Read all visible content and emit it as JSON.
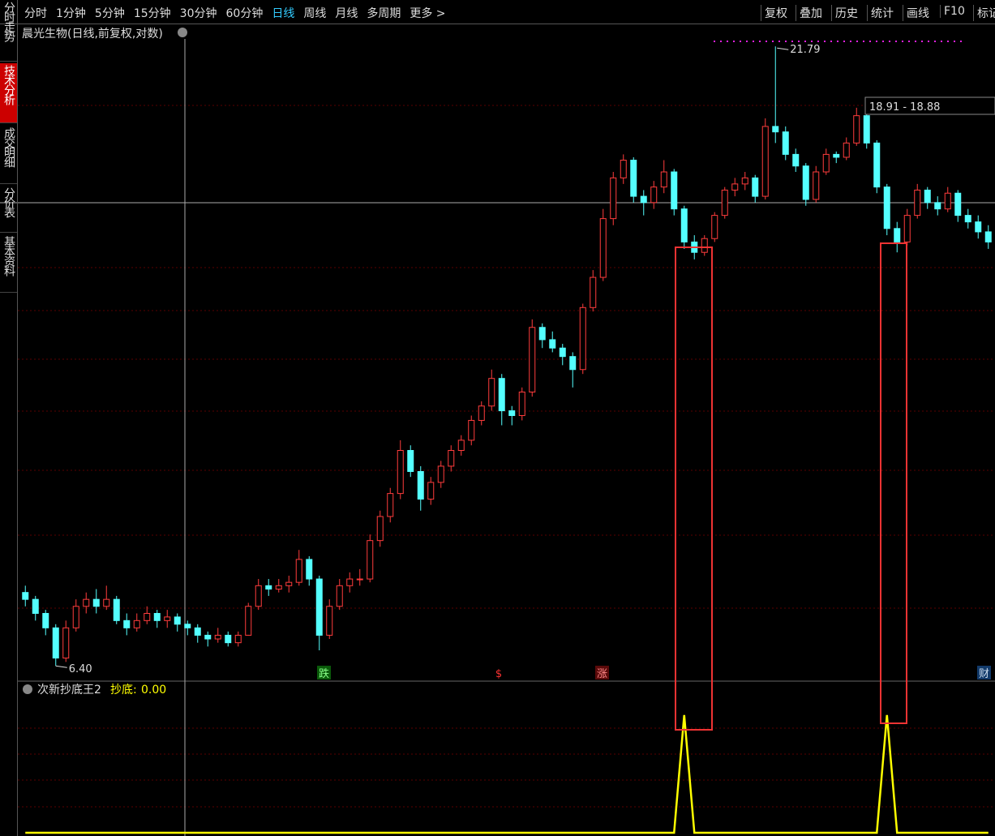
{
  "toolbar": {
    "periods": [
      "分时",
      "1分钟",
      "5分钟",
      "15分钟",
      "30分钟",
      "60分钟",
      "日线",
      "周线",
      "月线",
      "多周期",
      "更多 >"
    ],
    "tools": [
      "复权",
      "叠加",
      "历史",
      "统计",
      "画线",
      "F10",
      "标记"
    ]
  },
  "side_tabs": [
    "分时走势",
    "技术分析",
    "成交明细",
    "分价表",
    "基本资料"
  ],
  "chart_data": [
    {
      "type": "candlestick",
      "title": "晨光生物(日线,前复权,对数)",
      "log_scale": true,
      "ylim": [
        6.23,
        22.4
      ],
      "up_color": "#ff3c3c",
      "down_color": "#54ffff",
      "candles": [
        [
          7.4,
          7.5,
          7.2,
          7.3
        ],
        [
          7.3,
          7.35,
          7.0,
          7.1
        ],
        [
          7.1,
          7.15,
          6.8,
          6.9
        ],
        [
          6.9,
          6.95,
          6.4,
          6.5
        ],
        [
          6.5,
          7.0,
          6.45,
          6.9
        ],
        [
          6.9,
          7.3,
          6.85,
          7.2
        ],
        [
          7.2,
          7.4,
          7.1,
          7.3
        ],
        [
          7.3,
          7.45,
          7.1,
          7.2
        ],
        [
          7.2,
          7.5,
          7.15,
          7.3
        ],
        [
          7.3,
          7.35,
          6.95,
          7.0
        ],
        [
          7.0,
          7.1,
          6.8,
          6.9
        ],
        [
          6.9,
          7.1,
          6.85,
          7.0
        ],
        [
          7.0,
          7.2,
          6.95,
          7.1
        ],
        [
          7.1,
          7.15,
          6.9,
          7.0
        ],
        [
          7.0,
          7.15,
          6.9,
          7.05
        ],
        [
          7.05,
          7.1,
          6.85,
          6.95
        ],
        [
          6.95,
          7.0,
          6.8,
          6.9
        ],
        [
          6.9,
          6.95,
          6.7,
          6.8
        ],
        [
          6.8,
          6.85,
          6.65,
          6.75
        ],
        [
          6.75,
          6.9,
          6.7,
          6.8
        ],
        [
          6.8,
          6.85,
          6.65,
          6.7
        ],
        [
          6.7,
          6.85,
          6.65,
          6.8
        ],
        [
          6.8,
          7.25,
          6.8,
          7.2
        ],
        [
          7.2,
          7.6,
          7.15,
          7.5
        ],
        [
          7.5,
          7.6,
          7.35,
          7.45
        ],
        [
          7.45,
          7.6,
          7.4,
          7.5
        ],
        [
          7.5,
          7.65,
          7.4,
          7.55
        ],
        [
          7.55,
          8.05,
          7.5,
          7.9
        ],
        [
          7.9,
          7.95,
          7.5,
          7.6
        ],
        [
          7.6,
          7.65,
          6.6,
          6.8
        ],
        [
          6.8,
          7.3,
          6.75,
          7.2
        ],
        [
          7.2,
          7.6,
          7.15,
          7.5
        ],
        [
          7.5,
          7.7,
          7.4,
          7.6
        ],
        [
          7.6,
          7.75,
          7.5,
          7.6
        ],
        [
          7.6,
          8.3,
          7.55,
          8.2
        ],
        [
          8.2,
          8.7,
          8.1,
          8.6
        ],
        [
          8.6,
          9.1,
          8.5,
          9.0
        ],
        [
          9.0,
          10.0,
          8.9,
          9.8
        ],
        [
          9.8,
          9.9,
          9.3,
          9.4
        ],
        [
          9.4,
          9.5,
          8.7,
          8.9
        ],
        [
          8.9,
          9.3,
          8.8,
          9.2
        ],
        [
          9.2,
          9.6,
          9.1,
          9.5
        ],
        [
          9.5,
          9.9,
          9.4,
          9.8
        ],
        [
          9.8,
          10.1,
          9.7,
          10.0
        ],
        [
          10.0,
          10.5,
          9.9,
          10.4
        ],
        [
          10.4,
          10.8,
          10.3,
          10.7
        ],
        [
          10.7,
          11.5,
          10.6,
          11.3
        ],
        [
          11.3,
          11.4,
          10.3,
          10.6
        ],
        [
          10.6,
          10.7,
          10.3,
          10.5
        ],
        [
          10.5,
          11.1,
          10.4,
          11.0
        ],
        [
          11.0,
          12.7,
          10.9,
          12.5
        ],
        [
          12.5,
          12.6,
          12.0,
          12.2
        ],
        [
          12.2,
          12.4,
          11.9,
          12.0
        ],
        [
          12.0,
          12.1,
          11.6,
          11.8
        ],
        [
          11.8,
          11.9,
          11.1,
          11.5
        ],
        [
          11.5,
          13.1,
          11.4,
          13.0
        ],
        [
          13.0,
          14.0,
          12.9,
          13.8
        ],
        [
          13.8,
          15.8,
          13.7,
          15.5
        ],
        [
          15.5,
          17.0,
          15.3,
          16.8
        ],
        [
          16.8,
          17.6,
          16.6,
          17.4
        ],
        [
          17.4,
          17.5,
          16.0,
          16.2
        ],
        [
          16.2,
          16.4,
          15.6,
          16.0
        ],
        [
          16.0,
          16.7,
          15.8,
          16.5
        ],
        [
          16.5,
          17.4,
          16.3,
          17.0
        ],
        [
          17.0,
          17.1,
          15.6,
          15.8
        ],
        [
          15.8,
          15.9,
          14.6,
          14.8
        ],
        [
          14.8,
          15.0,
          14.3,
          14.5
        ],
        [
          14.5,
          15.0,
          14.4,
          14.9
        ],
        [
          14.9,
          15.7,
          14.8,
          15.6
        ],
        [
          15.6,
          16.5,
          15.5,
          16.4
        ],
        [
          16.4,
          16.8,
          16.2,
          16.6
        ],
        [
          16.6,
          17.0,
          16.4,
          16.8
        ],
        [
          16.8,
          16.9,
          16.0,
          16.2
        ],
        [
          16.2,
          18.9,
          16.1,
          18.6
        ],
        [
          18.6,
          21.79,
          18.0,
          18.4
        ],
        [
          18.4,
          18.6,
          17.4,
          17.6
        ],
        [
          17.6,
          17.8,
          17.0,
          17.2
        ],
        [
          17.2,
          17.3,
          15.9,
          16.1
        ],
        [
          16.1,
          17.2,
          16.0,
          17.0
        ],
        [
          17.0,
          17.8,
          16.9,
          17.6
        ],
        [
          17.6,
          17.7,
          17.3,
          17.5
        ],
        [
          17.5,
          18.2,
          17.4,
          18.0
        ],
        [
          18.0,
          19.3,
          17.9,
          19.0
        ],
        [
          19.0,
          19.1,
          17.8,
          18.0
        ],
        [
          18.0,
          18.1,
          16.3,
          16.5
        ],
        [
          16.5,
          16.6,
          15.0,
          15.2
        ],
        [
          15.2,
          15.4,
          14.5,
          14.8
        ],
        [
          14.8,
          15.8,
          14.7,
          15.6
        ],
        [
          15.6,
          16.6,
          15.5,
          16.4
        ],
        [
          16.4,
          16.5,
          15.8,
          16.0
        ],
        [
          16.0,
          16.2,
          15.6,
          15.8
        ],
        [
          15.8,
          16.5,
          15.7,
          16.3
        ],
        [
          16.3,
          16.4,
          15.4,
          15.6
        ],
        [
          15.6,
          15.8,
          15.2,
          15.4
        ],
        [
          15.4,
          15.6,
          14.9,
          15.1
        ],
        [
          15.1,
          15.3,
          14.6,
          14.8
        ]
      ],
      "high_label": {
        "value": 21.79,
        "label": "21.79"
      },
      "low_label": {
        "value": 6.4,
        "label": "6.40"
      },
      "range_label": "18.91 - 18.88",
      "markers": [
        "跌",
        "$",
        "涨",
        "财"
      ]
    },
    {
      "type": "line",
      "title": "次新抄底王2",
      "series_label": "抄底:",
      "current": {
        "value": 0,
        "label": "0.00"
      },
      "color": "#ffff00",
      "ylim": [
        0,
        100
      ],
      "values": [
        0,
        0,
        0,
        0,
        0,
        0,
        0,
        0,
        0,
        0,
        0,
        0,
        0,
        0,
        0,
        0,
        0,
        0,
        0,
        0,
        0,
        0,
        0,
        0,
        0,
        0,
        0,
        0,
        0,
        0,
        0,
        0,
        0,
        0,
        0,
        0,
        0,
        0,
        0,
        0,
        0,
        0,
        0,
        0,
        0,
        0,
        0,
        0,
        0,
        0,
        0,
        0,
        0,
        0,
        0,
        0,
        0,
        0,
        0,
        0,
        0,
        0,
        0,
        0,
        0,
        88,
        0,
        0,
        0,
        0,
        0,
        0,
        0,
        0,
        0,
        0,
        0,
        0,
        0,
        0,
        0,
        0,
        0,
        0,
        0,
        88,
        0,
        0,
        0,
        0,
        0,
        0,
        0,
        0,
        0,
        0
      ]
    }
  ]
}
